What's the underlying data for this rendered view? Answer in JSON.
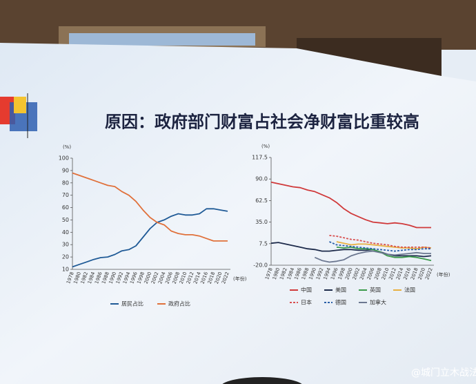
{
  "slide_title": "原因：政府部门财富占社会净财富比重较高",
  "watermark": "@城门立木战法",
  "chart_data": [
    {
      "type": "line",
      "y_label": "(%)",
      "x_label": "(年份)",
      "categories": [
        "1978",
        "1980",
        "1982",
        "1984",
        "1986",
        "1988",
        "1990",
        "1992",
        "1994",
        "1996",
        "1998",
        "2000",
        "2002",
        "2004",
        "2006",
        "2008",
        "2010",
        "2012",
        "2014",
        "2016",
        "2018",
        "2020",
        "2022"
      ],
      "ylim": [
        10,
        100
      ],
      "yticks": [
        10,
        20,
        30,
        40,
        50,
        60,
        70,
        80,
        90,
        100
      ],
      "series": [
        {
          "name": "居民占比",
          "color": "#1f5a96",
          "values": [
            12,
            14,
            16,
            18,
            19.5,
            20,
            22,
            25,
            26,
            29,
            36,
            43,
            48,
            50,
            53,
            55,
            54,
            54,
            55,
            59,
            59,
            58,
            57
          ]
        },
        {
          "name": "政府占比",
          "color": "#e0703a",
          "values": [
            88,
            86,
            84,
            82,
            80,
            78,
            77,
            73,
            70,
            65,
            58,
            52,
            48,
            46,
            41,
            39,
            38,
            38,
            37,
            35,
            33,
            33,
            33
          ]
        }
      ]
    },
    {
      "type": "line",
      "y_label": "(%)",
      "x_label": "(年份)",
      "categories": [
        "1978",
        "1980",
        "1982",
        "1984",
        "1986",
        "1988",
        "1990",
        "1992",
        "1994",
        "1996",
        "1998",
        "2000",
        "2002",
        "2004",
        "2006",
        "2008",
        "2010",
        "2012",
        "2014",
        "2016",
        "2018",
        "2020",
        "2022"
      ],
      "ylim": [
        -20,
        117.5
      ],
      "yticks": [
        {
          "value": -20,
          "label": "-20.0"
        },
        7.5,
        {
          "value": 35,
          "label": "35.0"
        },
        62.5,
        {
          "value": 90,
          "label": "90.0"
        },
        117.5
      ],
      "series": [
        {
          "name": "中国",
          "color": "#d0393a",
          "dash": false,
          "values": [
            86,
            84,
            82,
            80,
            79,
            76,
            74,
            70,
            66,
            60,
            52,
            46,
            42,
            38,
            35,
            34,
            33,
            34,
            33,
            31,
            28,
            28,
            28
          ]
        },
        {
          "name": "美国",
          "color": "#1c2a4a",
          "dash": false,
          "values": [
            8,
            9,
            7,
            5,
            3,
            1,
            0,
            -2,
            -2,
            -1,
            0,
            0,
            -1,
            -1,
            0,
            -3,
            -6,
            -8,
            -8,
            -8,
            -8,
            -9,
            -8
          ]
        },
        {
          "name": "英国",
          "color": "#3a9a4a",
          "dash": false,
          "values": [
            null,
            null,
            null,
            null,
            null,
            null,
            null,
            null,
            null,
            3,
            2,
            3,
            1,
            1,
            0,
            -3,
            -8,
            -10,
            -10,
            -9,
            -10,
            -12,
            -14
          ]
        },
        {
          "name": "法国",
          "color": "#e8b040",
          "dash": false,
          "values": [
            null,
            null,
            null,
            null,
            null,
            null,
            null,
            null,
            null,
            10,
            8,
            6,
            7,
            7,
            6,
            5,
            4,
            3,
            2,
            2,
            1,
            3,
            2
          ]
        },
        {
          "name": "日本",
          "color": "#d85050",
          "dash": true,
          "values": [
            null,
            null,
            null,
            null,
            null,
            null,
            null,
            null,
            18,
            17,
            15,
            13,
            12,
            10,
            8,
            7,
            6,
            4,
            3,
            3,
            3,
            3,
            2
          ]
        },
        {
          "name": "德国",
          "color": "#2a5fa8",
          "dash": true,
          "values": [
            null,
            null,
            null,
            null,
            null,
            null,
            null,
            null,
            10,
            6,
            5,
            4,
            3,
            2,
            1,
            0,
            -1,
            -2,
            -1,
            0,
            0,
            1,
            1
          ]
        },
        {
          "name": "加拿大",
          "color": "#6b7790",
          "dash": false,
          "values": [
            null,
            null,
            null,
            null,
            null,
            null,
            -10,
            -14,
            -16,
            -15,
            -13,
            -8,
            -5,
            -3,
            -2,
            -4,
            -6,
            -7,
            -6,
            -5,
            -4,
            -5,
            -5
          ]
        }
      ]
    }
  ]
}
